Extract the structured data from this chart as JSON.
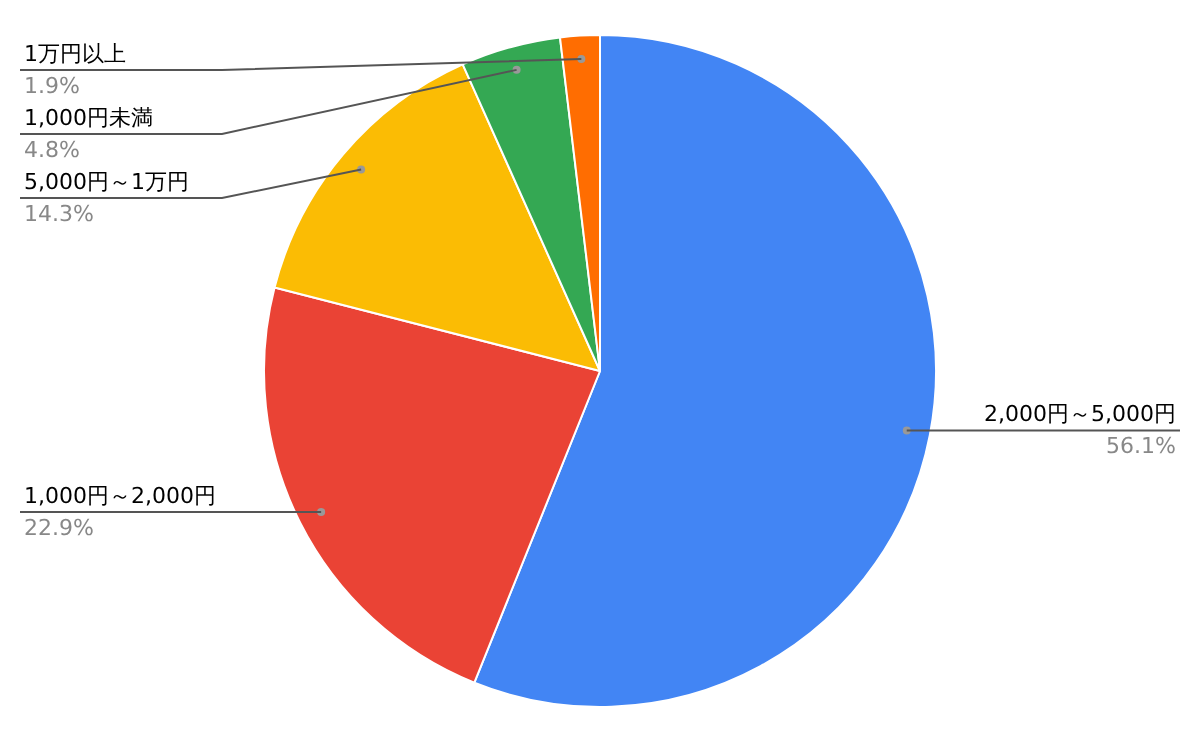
{
  "chart_data": {
    "type": "pie",
    "categories": [
      "2,000円～5,000円",
      "1,000円～2,000円",
      "5,000円～1万円",
      "1,000円未満",
      "1万円以上"
    ],
    "values": [
      56.1,
      22.9,
      14.3,
      4.8,
      1.9
    ],
    "colors": [
      "#4285f4",
      "#ea4335",
      "#fbbc04",
      "#34a853",
      "#ff6d01"
    ],
    "value_labels": [
      "56.1%",
      "22.9%",
      "14.3%",
      "4.8%",
      "1.9%"
    ],
    "legend": false
  }
}
